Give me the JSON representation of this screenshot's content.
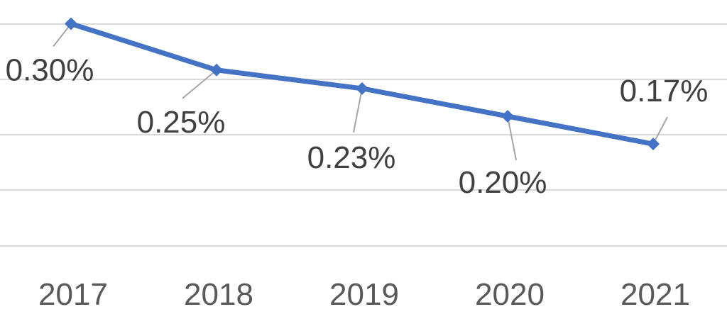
{
  "chart_data": {
    "type": "line",
    "title": "",
    "xlabel": "",
    "ylabel": "",
    "categories": [
      "2017",
      "2018",
      "2019",
      "2020",
      "2021"
    ],
    "series": [
      {
        "values": [
          0.3,
          0.25,
          0.23,
          0.2,
          0.17
        ],
        "data_labels": [
          "0.30%",
          "0.25%",
          "0.23%",
          "0.20%",
          "0.17%"
        ],
        "color": "#4472c4"
      }
    ],
    "ylim": [
      0.0,
      0.32
    ],
    "y_unit": "%",
    "grid": true,
    "legend": "none"
  }
}
